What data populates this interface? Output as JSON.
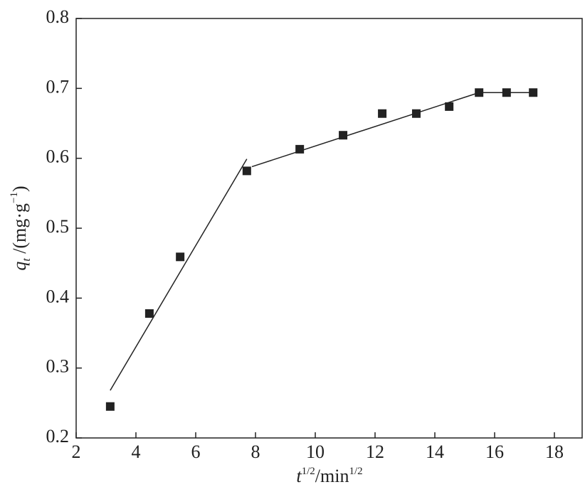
{
  "chart_data": {
    "type": "scatter",
    "xlabel": [
      "t",
      "1/2",
      "/min",
      "1/2"
    ],
    "ylabel": [
      "q",
      "t",
      " /(mg·g",
      "−1",
      ")"
    ],
    "xlim": [
      2,
      19
    ],
    "ylim": [
      0.2,
      0.8
    ],
    "xticks": [
      2,
      4,
      6,
      8,
      10,
      12,
      14,
      16,
      18
    ],
    "yticks": [
      0.2,
      0.3,
      0.4,
      0.5,
      0.6,
      0.7,
      0.8
    ],
    "series": [
      {
        "color": "#222222",
        "x": [
          3.14,
          4.45,
          5.48,
          7.71,
          9.48,
          10.93,
          12.24,
          13.38,
          14.48,
          15.48,
          16.4,
          17.29
        ],
        "values": [
          0.245,
          0.378,
          0.459,
          0.582,
          0.613,
          0.633,
          0.664,
          0.664,
          0.674,
          0.694,
          0.694,
          0.694
        ]
      }
    ],
    "fit_lines": [
      {
        "color": "#222222",
        "x": [
          3.14,
          7.71
        ],
        "values": [
          0.268,
          0.599
        ]
      },
      {
        "color": "#222222",
        "x": [
          7.88,
          15.48
        ],
        "values": [
          0.588,
          0.694
        ]
      },
      {
        "color": "#222222",
        "x": [
          15.48,
          17.29
        ],
        "values": [
          0.694,
          0.694
        ]
      }
    ]
  }
}
